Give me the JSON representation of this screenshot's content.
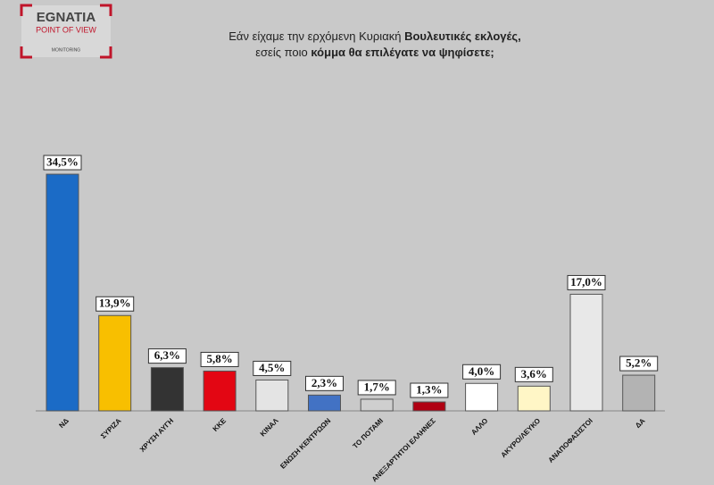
{
  "logo": {
    "name": "EGNATIA",
    "tagline": "POINT OF VIEW",
    "sub": "MONITORING"
  },
  "chart_data": {
    "type": "bar",
    "title": [
      [
        "Εάν είχαμε την ερχόμενη Κυριακή ",
        "Βουλευτικές εκλογές,"
      ],
      [
        "εσείς ποιο ",
        "κόμμα θα επιλέγατε να ψηφίσετε;"
      ]
    ],
    "categories": [
      "ΝΔ",
      "ΣΥΡΙΖΑ",
      "ΧΡΥΣΗ ΑΥΓΗ",
      "ΚΚΕ",
      "ΚΙΝΑΛ",
      "ΕΝΩΣΗ ΚΕΝΤΡΩΩΝ",
      "ΤΟ ΠΟΤΑΜΙ",
      "ΑΝΕΞΑΡΤΗΤΟΙ ΕΛΛΗΝΕΣ",
      "ΑΛΛΟ",
      "ΑΚΥΡΟ/ΛΕΥΚΟ",
      "ΑΝΑΠΟΦΑΣΙΣΤΟΙ",
      "ΔΑ"
    ],
    "values": [
      34.5,
      13.9,
      6.3,
      5.8,
      4.5,
      2.3,
      1.7,
      1.3,
      4.0,
      3.6,
      17.0,
      5.2
    ],
    "value_labels": [
      "34,5%",
      "13,9%",
      "6,3%",
      "5,8%",
      "4,5%",
      "2,3%",
      "1,7%",
      "1,3%",
      "4,0%",
      "3,6%",
      "17,0%",
      "5,2%"
    ],
    "colors": [
      "#1b6bc6",
      "#f8bf00",
      "#333333",
      "#e30613",
      "#e4e4e4",
      "#4272c4",
      "#cfcfcf",
      "#b00012",
      "#ffffff",
      "#fff6c6",
      "#e8e8e8",
      "#b3b3b3"
    ]
  }
}
